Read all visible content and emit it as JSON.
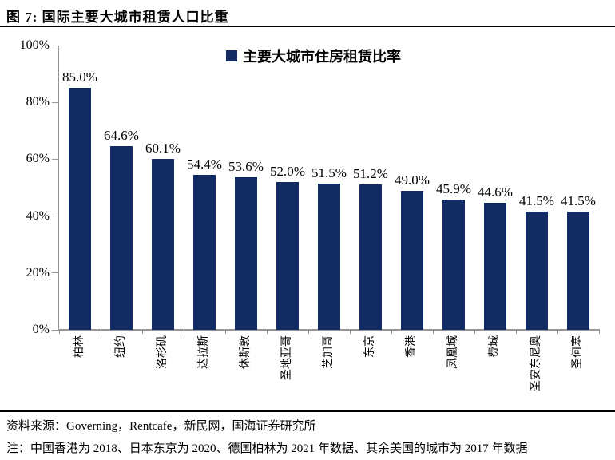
{
  "header": {
    "title": "图 7:  国际主要大城市租赁人口比重"
  },
  "legend": {
    "label": "主要大城市住房租赁比率",
    "marker_color": "#132B63"
  },
  "chart_data": {
    "type": "bar",
    "title": "国际主要大城市租赁人口比重",
    "categories": [
      "柏林",
      "纽约",
      "洛杉矶",
      "达拉斯",
      "休斯敦",
      "圣地亚哥",
      "芝加哥",
      "东京",
      "香港",
      "凤凰城",
      "费城",
      "圣安东尼奥",
      "圣何塞"
    ],
    "values": [
      85.0,
      64.6,
      60.1,
      54.4,
      53.6,
      52.0,
      51.5,
      51.2,
      49.0,
      45.9,
      44.6,
      41.5,
      41.5
    ],
    "value_labels": [
      "85.0%",
      "64.6%",
      "60.1%",
      "54.4%",
      "53.6%",
      "52.0%",
      "51.5%",
      "51.2%",
      "49.0%",
      "45.9%",
      "44.6%",
      "41.5%",
      "41.5%"
    ],
    "xlabel": "",
    "ylabel": "",
    "ylim": [
      0,
      100
    ],
    "yticks": [
      0,
      20,
      40,
      60,
      80,
      100
    ],
    "ytick_labels": [
      "0%",
      "20%",
      "40%",
      "60%",
      "80%",
      "100%"
    ],
    "grid": false,
    "legend_entries": [
      "主要大城市住房租赁比率"
    ],
    "legend_position": "top-center",
    "bar_color": "#132B63",
    "axis_color": "#969696"
  },
  "footer": {
    "source": "资料来源：Governing，Rentcafe，新民网，国海证券研究所",
    "note": "注：中国香港为 2018、日本东京为 2020、德国柏林为 2021 年数据、其余美国的城市为 2017 年数据"
  }
}
